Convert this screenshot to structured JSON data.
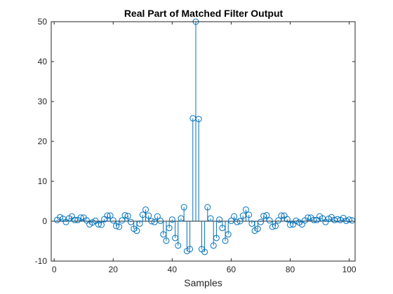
{
  "chart_data": {
    "type": "stem",
    "title": "Real Part of Matched Filter Output",
    "xlabel": "Samples",
    "ylabel": "",
    "xlim": [
      -1,
      102
    ],
    "ylim": [
      -10,
      50
    ],
    "xticks": [
      0,
      20,
      40,
      60,
      80,
      100
    ],
    "yticks": [
      -10,
      0,
      10,
      20,
      30,
      40,
      50
    ],
    "grid": false,
    "color": "#0072bd",
    "x_start": 1,
    "values": [
      0.3,
      1.0,
      0.6,
      -0.2,
      0.7,
      1.2,
      0.3,
      0.3,
      0.9,
      0.9,
      0.2,
      -0.8,
      -0.3,
      0.1,
      -0.8,
      -0.9,
      0.5,
      1.4,
      1.4,
      0.2,
      -1.2,
      -1.4,
      0.2,
      1.5,
      1.3,
      -0.2,
      -1.9,
      -2.4,
      -0.6,
      1.6,
      2.9,
      1.4,
      0.0,
      -0.2,
      1.2,
      0.1,
      -3.3,
      -4.9,
      -1.7,
      0.4,
      -4.2,
      -6.1,
      0.7,
      3.5,
      -7.5,
      -7.0,
      25.8,
      50.0,
      25.6,
      -7.0,
      -7.7,
      3.5,
      0.7,
      -6.1,
      -4.2,
      0.4,
      -1.7,
      -4.9,
      -3.3,
      0.1,
      1.2,
      -0.2,
      0.0,
      1.4,
      2.9,
      1.6,
      -0.6,
      -2.4,
      -1.9,
      -0.2,
      1.3,
      1.5,
      0.2,
      -1.4,
      -1.2,
      0.2,
      1.4,
      1.4,
      0.5,
      -0.9,
      -0.8,
      0.1,
      -0.3,
      -0.8,
      0.2,
      0.9,
      0.9,
      0.3,
      0.3,
      1.2,
      0.7,
      -0.2,
      0.6,
      1.0,
      0.3,
      0.5,
      0.3,
      0.8,
      0.1,
      0.4,
      0.2
    ]
  }
}
